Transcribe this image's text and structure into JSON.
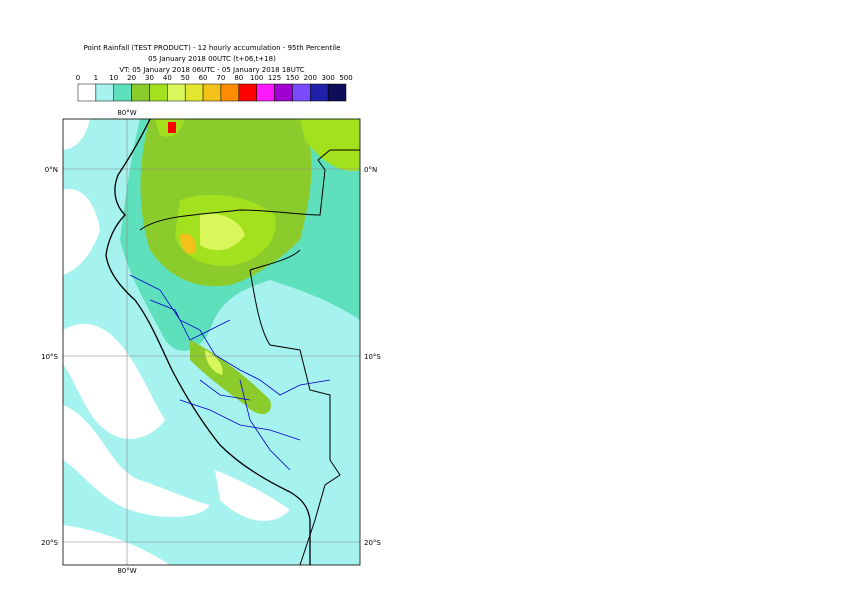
{
  "title": "Point Rainfall (TEST PRODUCT) - 12 hourly accumulation - 95th Percentile",
  "base_time": "05 January 2018 00UTC (t+06,t+18)",
  "valid_time": "VT: 05 January 2018 06UTC - 05 January 2018 18UTC",
  "legend": {
    "labels": [
      "0",
      "1",
      "10",
      "20",
      "30",
      "40",
      "50",
      "60",
      "70",
      "80",
      "100",
      "125",
      "150",
      "200",
      "300",
      "500"
    ],
    "colors": [
      "#ffffff",
      "#a6f2ee",
      "#5fe0bc",
      "#8bcb2c",
      "#a3e01e",
      "#d9f75a",
      "#e3e62e",
      "#f2c21a",
      "#ff8c00",
      "#ff0000",
      "#ff19ff",
      "#a000d0",
      "#7a4bff",
      "#2020a8",
      "#0d0d5a"
    ]
  },
  "map": {
    "lon_labels_top": [
      "80°W"
    ],
    "lon_labels_bottom": [
      "80°W"
    ],
    "lat_labels_left": [
      "0°N",
      "10°S",
      "20°S"
    ],
    "lat_labels_right": [
      "0°N",
      "10°S",
      "20°S"
    ]
  }
}
